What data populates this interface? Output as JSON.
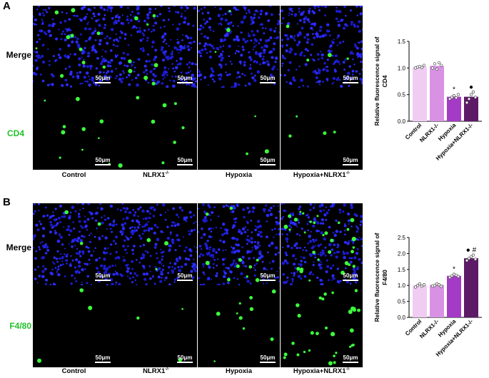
{
  "panels": [
    {
      "letter": "A",
      "rows": [
        {
          "label": "Merge",
          "green": false
        },
        {
          "label": "CD4",
          "green": true
        }
      ],
      "scale_bar": "50μm",
      "columns": [
        "Control",
        "NLRX1",
        "Hypoxia",
        "Hypoxia+NLRX1"
      ],
      "column_sup": [
        "",
        "-/-",
        "",
        "-/-"
      ]
    },
    {
      "letter": "B",
      "rows": [
        {
          "label": "Merge",
          "green": false
        },
        {
          "label": "F4/80",
          "green": true
        }
      ],
      "scale_bar": "50μm",
      "columns": [
        "Control",
        "NLRX1",
        "Hypoxia",
        "Hypoxia+NLRX1"
      ],
      "column_sup": [
        "",
        "-/-",
        "",
        "-/-"
      ]
    }
  ],
  "chart_data": [
    {
      "type": "bar",
      "ylabel": "Relative fluorescence signal of CD4",
      "categories": [
        "Control",
        "NLRX1-/-",
        "Hypoxia",
        "Hypoxia+NLRX1-/-"
      ],
      "values": [
        1.02,
        1.04,
        0.46,
        0.46
      ],
      "points": [
        [
          1.0,
          1.02,
          1.03,
          1.01,
          1.05
        ],
        [
          1.0,
          1.08,
          0.98,
          1.1,
          1.05
        ],
        [
          0.42,
          0.45,
          0.48,
          0.44,
          0.5
        ],
        [
          0.35,
          0.42,
          0.5,
          0.55,
          0.45
        ]
      ],
      "ylim": [
        0,
        1.5
      ],
      "yticks": [
        "0.0",
        "0.5",
        "1.0",
        "1.5"
      ],
      "bar_colors": [
        "#f0ccf2",
        "#d891e3",
        "#a43bc6",
        "#5d1a66"
      ],
      "annotations": [
        "",
        "",
        "*",
        "●"
      ]
    },
    {
      "type": "bar",
      "ylabel": "Relative fluorescence signal of F4/80",
      "categories": [
        "Control",
        "NLRX1-/-",
        "Hypoxia",
        "Hypoxia+NLRX1-/-"
      ],
      "values": [
        1.0,
        1.02,
        1.3,
        1.85
      ],
      "points": [
        [
          0.95,
          1.0,
          1.05,
          0.98,
          1.02
        ],
        [
          0.98,
          1.0,
          1.05,
          1.02,
          0.97
        ],
        [
          1.25,
          1.3,
          1.35,
          1.32,
          1.28
        ],
        [
          1.78,
          1.85,
          1.9,
          1.95,
          1.82
        ]
      ],
      "ylim": [
        0,
        2.5
      ],
      "yticks": [
        "0.0",
        "0.5",
        "1.0",
        "1.5",
        "2.0",
        "2.5"
      ],
      "bar_colors": [
        "#f0ccf2",
        "#d891e3",
        "#a43bc6",
        "#5d1a66"
      ],
      "annotations": [
        "",
        "",
        "*",
        "● #"
      ]
    }
  ]
}
